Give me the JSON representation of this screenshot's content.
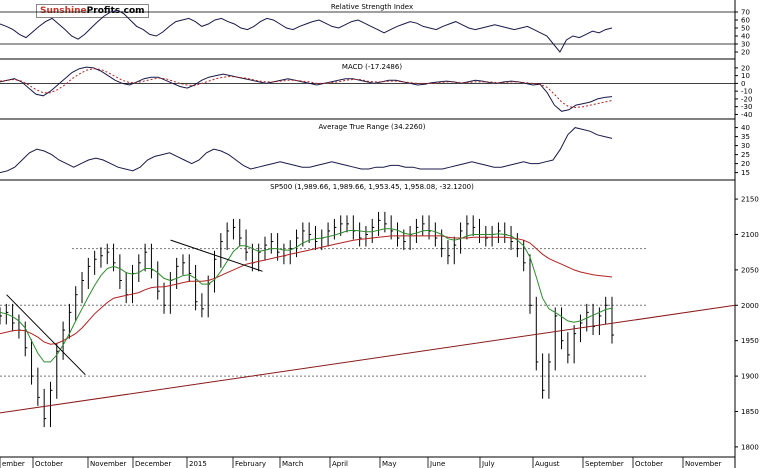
{
  "watermark": {
    "brand": "Sunshine",
    "rest": "Profits.com"
  },
  "colors": {
    "price": "#000000",
    "ma_fast": "#2e8b2e",
    "ma_slow": "#b22222",
    "indicator": "#1a1a4a",
    "signal": "#b22222",
    "trendline": "#8b1a1a",
    "grid": "#777777"
  },
  "chart_data": [
    {
      "type": "line",
      "title": "Relative Strength Index",
      "y_ticks": [
        70,
        60,
        50,
        40,
        30,
        20
      ],
      "ylim": [
        15,
        80
      ],
      "reference_lines": [
        70,
        30
      ],
      "values": [
        55,
        52,
        48,
        42,
        38,
        45,
        52,
        58,
        62,
        55,
        48,
        40,
        36,
        42,
        50,
        58,
        65,
        70,
        72,
        68,
        60,
        52,
        48,
        42,
        40,
        45,
        52,
        58,
        60,
        62,
        58,
        52,
        55,
        60,
        62,
        58,
        55,
        50,
        48,
        52,
        58,
        62,
        60,
        55,
        50,
        48,
        52,
        55,
        58,
        60,
        56,
        52,
        50,
        54,
        58,
        60,
        56,
        52,
        48,
        44,
        48,
        52,
        55,
        58,
        56,
        52,
        50,
        48,
        52,
        55,
        58,
        54,
        50,
        48,
        50,
        52,
        54,
        52,
        50,
        48,
        50,
        52,
        48,
        44,
        40,
        30,
        20,
        35,
        40,
        38,
        42,
        46,
        44,
        48,
        50
      ]
    },
    {
      "type": "line",
      "title": "MACD (-17.2486)",
      "y_ticks": [
        20,
        10,
        0,
        -10,
        -20,
        -30,
        -40
      ],
      "ylim": [
        -42,
        25
      ],
      "reference_lines": [
        0
      ],
      "series": [
        {
          "values": [
            2,
            4,
            6,
            2,
            -6,
            -14,
            -16,
            -10,
            -2,
            6,
            14,
            19,
            21,
            20,
            16,
            10,
            4,
            0,
            -2,
            2,
            6,
            8,
            8,
            4,
            0,
            -4,
            -6,
            -2,
            4,
            8,
            10,
            12,
            10,
            8,
            6,
            4,
            2,
            0,
            2,
            4,
            6,
            4,
            2,
            0,
            -2,
            0,
            2,
            4,
            6,
            6,
            4,
            2,
            0,
            2,
            4,
            4,
            2,
            0,
            -2,
            -1,
            1,
            2,
            3,
            2,
            0,
            2,
            4,
            3,
            1,
            0,
            2,
            3,
            2,
            0,
            -2,
            -1,
            -12,
            -28,
            -36,
            -34,
            -28,
            -26,
            -24,
            -20,
            -18,
            -17
          ]
        },
        {
          "values": [
            3,
            4,
            5,
            3,
            -2,
            -8,
            -12,
            -12,
            -8,
            -2,
            6,
            12,
            17,
            19,
            18,
            14,
            9,
            4,
            1,
            1,
            3,
            5,
            7,
            6,
            3,
            0,
            -2,
            -3,
            0,
            3,
            6,
            8,
            9,
            8,
            7,
            5,
            3,
            2,
            2,
            3,
            4,
            4,
            3,
            2,
            0,
            0,
            1,
            2,
            4,
            5,
            5,
            3,
            2,
            2,
            3,
            3,
            2,
            1,
            0,
            0,
            0,
            1,
            2,
            2,
            1,
            1,
            2,
            2,
            2,
            1,
            1,
            2,
            2,
            1,
            0,
            -1,
            -5,
            -14,
            -24,
            -30,
            -31,
            -30,
            -28,
            -26,
            -24,
            -22
          ]
        }
      ]
    },
    {
      "type": "line",
      "title": "Average True Range (34.2260)",
      "y_ticks": [
        40,
        35,
        30,
        25,
        20,
        15
      ],
      "ylim": [
        12,
        42
      ],
      "values": [
        15,
        16,
        18,
        22,
        26,
        28,
        27,
        25,
        22,
        20,
        18,
        20,
        22,
        23,
        22,
        20,
        18,
        17,
        16,
        18,
        22,
        24,
        25,
        26,
        24,
        22,
        20,
        22,
        26,
        28,
        27,
        25,
        22,
        19,
        17,
        18,
        19,
        20,
        21,
        20,
        19,
        18,
        18,
        19,
        20,
        21,
        20,
        19,
        18,
        17,
        17,
        18,
        18,
        19,
        19,
        18,
        18,
        17,
        17,
        17,
        17,
        18,
        19,
        20,
        21,
        20,
        19,
        18,
        18,
        19,
        20,
        21,
        20,
        20,
        21,
        22,
        28,
        36,
        40,
        39,
        38,
        36,
        35,
        34
      ]
    },
    {
      "type": "line",
      "title": "SP500 (1,989.66, 1,989.66, 1,953.45, 1,958.08, -32.1200)",
      "y_ticks": [
        2150,
        2100,
        2050,
        2000,
        1950,
        1900,
        1850,
        1800
      ],
      "ylim": [
        1790,
        2160
      ],
      "reference_lines": [
        2080,
        2000,
        1900
      ],
      "x_ticks": [
        "ember",
        "October",
        "November",
        "December",
        "2015",
        "February",
        "March",
        "April",
        "May",
        "June",
        "July",
        "August",
        "September",
        "October",
        "November"
      ],
      "series": [
        {
          "values": [
            1985,
            1990,
            1975,
            1965,
            1940,
            1900,
            1870,
            1840,
            1880,
            1935,
            1965,
            1990,
            2015,
            2035,
            2055,
            2065,
            2070,
            2075,
            2060,
            2035,
            2015,
            2045,
            2060,
            2075,
            2050,
            2020,
            2000,
            2035,
            2055,
            2060,
            2045,
            2005,
            1995,
            2030,
            2065,
            2090,
            2105,
            2110,
            2095,
            2075,
            2060,
            2075,
            2085,
            2090,
            2075,
            2070,
            2080,
            2095,
            2105,
            2100,
            2090,
            2095,
            2105,
            2110,
            2115,
            2115,
            2105,
            2095,
            2100,
            2110,
            2120,
            2115,
            2105,
            2095,
            2090,
            2100,
            2110,
            2115,
            2105,
            2095,
            2080,
            2070,
            2085,
            2105,
            2115,
            2110,
            2100,
            2095,
            2100,
            2105,
            2100,
            2090,
            2080,
            2060,
            2000,
            1920,
            1880,
            1920,
            1985,
            1950,
            1930,
            1960,
            1975,
            1990,
            1970,
            1985,
            2000,
            1958
          ]
        },
        {
          "values": [
            1990,
            1988,
            1984,
            1978,
            1968,
            1950,
            1932,
            1920,
            1920,
            1930,
            1944,
            1960,
            1978,
            1995,
            2012,
            2028,
            2042,
            2052,
            2055,
            2052,
            2046,
            2044,
            2046,
            2052,
            2052,
            2046,
            2038,
            2035,
            2038,
            2042,
            2043,
            2038,
            2030,
            2030,
            2036,
            2048,
            2062,
            2076,
            2084,
            2084,
            2080,
            2076,
            2078,
            2080,
            2080,
            2078,
            2078,
            2082,
            2088,
            2092,
            2094,
            2095,
            2097,
            2099,
            2102,
            2105,
            2106,
            2105,
            2104,
            2104,
            2106,
            2108,
            2108,
            2106,
            2102,
            2100,
            2102,
            2105,
            2106,
            2104,
            2100,
            2094,
            2092,
            2094,
            2098,
            2100,
            2100,
            2100,
            2100,
            2101,
            2100,
            2098,
            2092,
            2084,
            2068,
            2040,
            2010,
            1995,
            1990,
            1984,
            1978,
            1976,
            1978,
            1982,
            1986,
            1990,
            1994,
            1996
          ]
        },
        {
          "values": [
            1960,
            1962,
            1964,
            1965,
            1964,
            1960,
            1955,
            1948,
            1945,
            1946,
            1950,
            1955,
            1960,
            1968,
            1978,
            1988,
            1996,
            2004,
            2010,
            2012,
            2014,
            2016,
            2018,
            2022,
            2025,
            2026,
            2026,
            2028,
            2030,
            2032,
            2034,
            2034,
            2034,
            2035,
            2038,
            2042,
            2046,
            2050,
            2054,
            2058,
            2060,
            2062,
            2064,
            2066,
            2068,
            2070,
            2072,
            2074,
            2076,
            2078,
            2080,
            2082,
            2084,
            2086,
            2088,
            2090,
            2092,
            2093,
            2094,
            2095,
            2096,
            2097,
            2098,
            2098,
            2098,
            2098,
            2098,
            2098,
            2098,
            2098,
            2098,
            2096,
            2095,
            2095,
            2095,
            2096,
            2096,
            2096,
            2096,
            2096,
            2096,
            2095,
            2094,
            2092,
            2088,
            2080,
            2072,
            2066,
            2062,
            2058,
            2054,
            2050,
            2047,
            2045,
            2043,
            2042,
            2041,
            2040
          ]
        }
      ],
      "trendlines": [
        {
          "from": [
            0,
            1848
          ],
          "to": [
            112,
            2000
          ]
        },
        {
          "from": [
            1,
            2015
          ],
          "to": [
            13,
            1902
          ]
        },
        {
          "from": [
            26,
            2092
          ],
          "to": [
            40,
            2048
          ]
        }
      ]
    }
  ]
}
